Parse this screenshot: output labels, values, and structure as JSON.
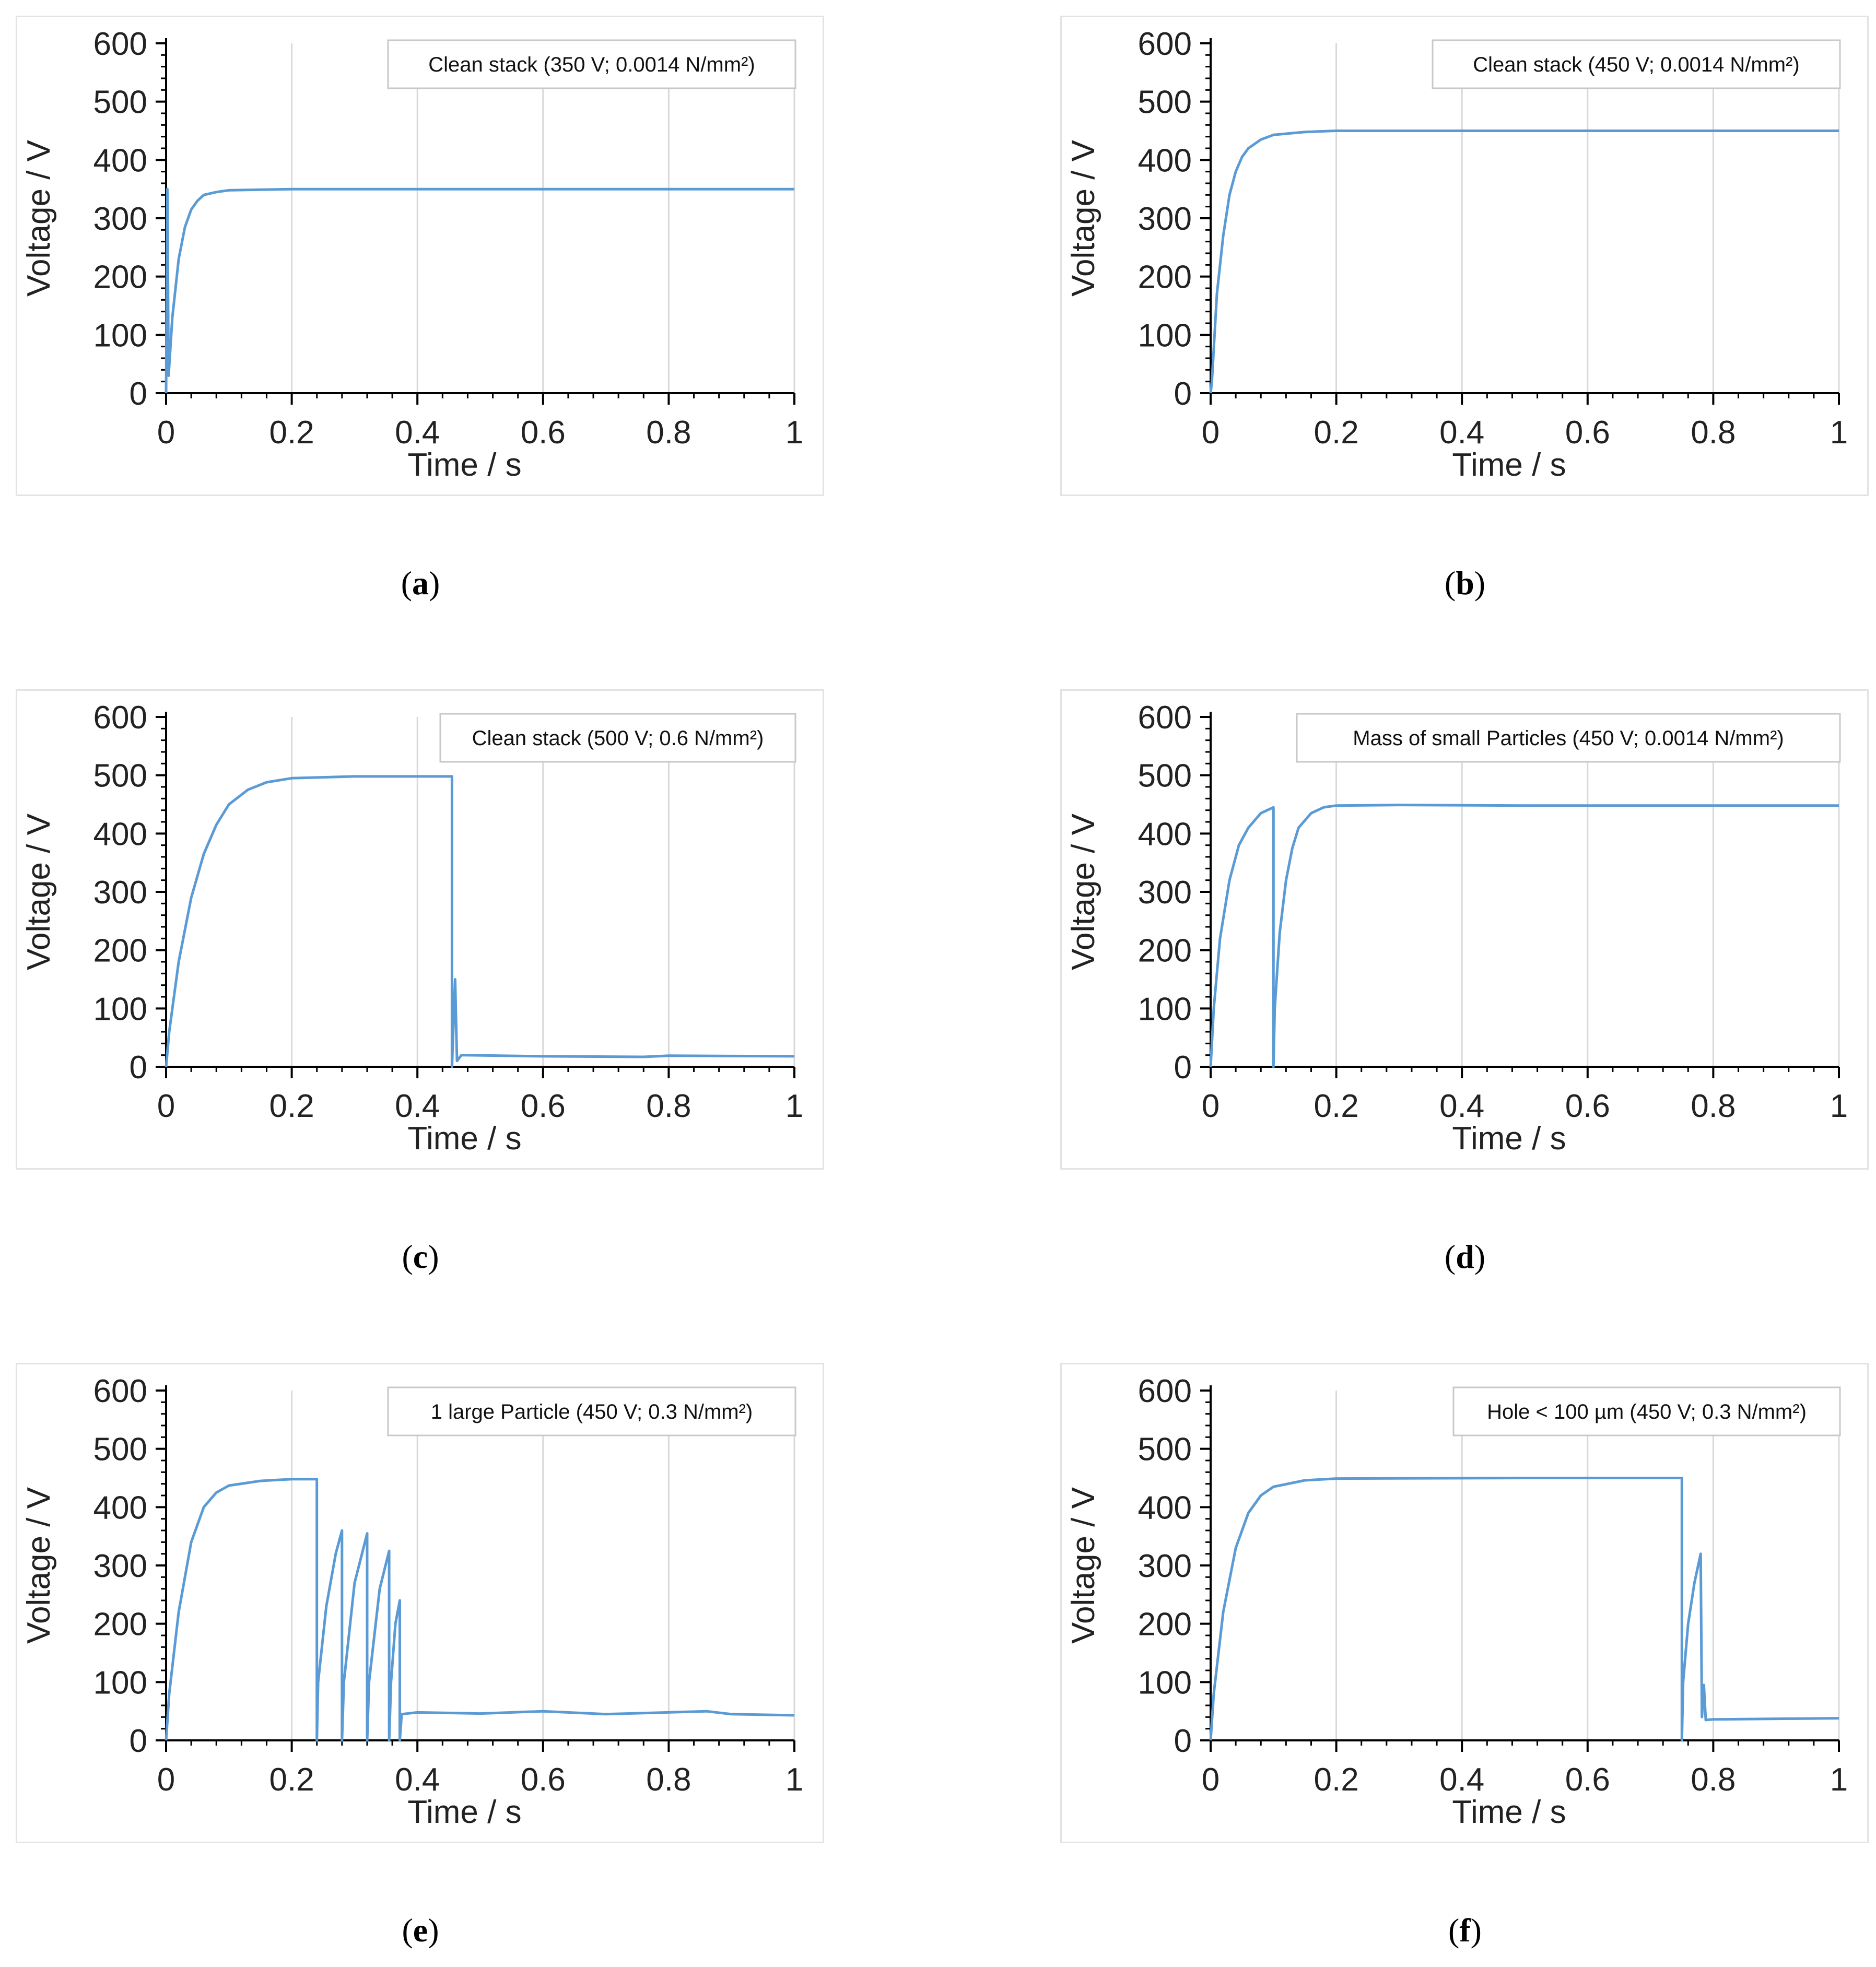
{
  "colors": {
    "series": "#5b9bd5",
    "grid": "#d9d9d9",
    "axis": "#000000",
    "frame": "#e3e3e3"
  },
  "chart_data": [
    {
      "id": "a",
      "type": "line",
      "caption": "a",
      "annotation": "Clean stack (350 V; 0.0014 N/mm²)",
      "xlabel": "Time / s",
      "ylabel": "Voltage / V",
      "xlim": [
        0,
        1
      ],
      "ylim": [
        0,
        600
      ],
      "xticks": [
        "0",
        "0.2",
        "0.4",
        "0.6",
        "0.8",
        "1"
      ],
      "yticks": [
        "0",
        "100",
        "200",
        "300",
        "400",
        "500",
        "600"
      ],
      "series": [
        {
          "name": "Voltage",
          "points": [
            [
              0,
              0
            ],
            [
              0.002,
              350
            ],
            [
              0.004,
              30
            ],
            [
              0.01,
              130
            ],
            [
              0.02,
              230
            ],
            [
              0.03,
              285
            ],
            [
              0.04,
              315
            ],
            [
              0.05,
              330
            ],
            [
              0.06,
              340
            ],
            [
              0.08,
              345
            ],
            [
              0.1,
              348
            ],
            [
              0.15,
              349
            ],
            [
              0.2,
              350
            ],
            [
              0.4,
              350
            ],
            [
              0.6,
              350
            ],
            [
              0.8,
              350
            ],
            [
              1.0,
              350
            ]
          ]
        }
      ]
    },
    {
      "id": "b",
      "type": "line",
      "caption": "b",
      "annotation": "Clean stack (450 V; 0.0014 N/mm²)",
      "xlabel": "Time / s",
      "ylabel": "Voltage / V",
      "xlim": [
        0,
        1
      ],
      "ylim": [
        0,
        600
      ],
      "xticks": [
        "0",
        "0.2",
        "0.4",
        "0.6",
        "0.8",
        "1"
      ],
      "yticks": [
        "0",
        "100",
        "200",
        "300",
        "400",
        "500",
        "600"
      ],
      "series": [
        {
          "name": "Voltage",
          "points": [
            [
              0,
              0
            ],
            [
              0.002,
              20
            ],
            [
              0.01,
              170
            ],
            [
              0.02,
              270
            ],
            [
              0.03,
              340
            ],
            [
              0.04,
              380
            ],
            [
              0.05,
              405
            ],
            [
              0.06,
              420
            ],
            [
              0.08,
              435
            ],
            [
              0.1,
              443
            ],
            [
              0.15,
              448
            ],
            [
              0.2,
              450
            ],
            [
              0.4,
              450
            ],
            [
              0.6,
              450
            ],
            [
              0.8,
              450
            ],
            [
              1.0,
              450
            ]
          ]
        }
      ]
    },
    {
      "id": "c",
      "type": "line",
      "caption": "c",
      "annotation": "Clean stack (500 V; 0.6 N/mm²)",
      "xlabel": "Time / s",
      "ylabel": "Voltage / V",
      "xlim": [
        0,
        1
      ],
      "ylim": [
        0,
        600
      ],
      "xticks": [
        "0",
        "0.2",
        "0.4",
        "0.6",
        "0.8",
        "1"
      ],
      "yticks": [
        "0",
        "100",
        "200",
        "300",
        "400",
        "500",
        "600"
      ],
      "series": [
        {
          "name": "Voltage",
          "points": [
            [
              0,
              0
            ],
            [
              0.005,
              60
            ],
            [
              0.02,
              180
            ],
            [
              0.04,
              290
            ],
            [
              0.06,
              365
            ],
            [
              0.08,
              415
            ],
            [
              0.1,
              450
            ],
            [
              0.13,
              475
            ],
            [
              0.16,
              488
            ],
            [
              0.2,
              495
            ],
            [
              0.3,
              498
            ],
            [
              0.455,
              498
            ],
            [
              0.455,
              0
            ],
            [
              0.46,
              150
            ],
            [
              0.463,
              10
            ],
            [
              0.47,
              20
            ],
            [
              0.6,
              18
            ],
            [
              0.76,
              17
            ],
            [
              0.8,
              19
            ],
            [
              1.0,
              18
            ]
          ]
        }
      ]
    },
    {
      "id": "d",
      "type": "line",
      "caption": "d",
      "annotation": "Mass of small Particles (450 V; 0.0014 N/mm²)",
      "xlabel": "Time / s",
      "ylabel": "Voltage / V",
      "xlim": [
        0,
        1
      ],
      "ylim": [
        0,
        600
      ],
      "xticks": [
        "0",
        "0.2",
        "0.4",
        "0.6",
        "0.8",
        "1"
      ],
      "yticks": [
        "0",
        "100",
        "200",
        "300",
        "400",
        "500",
        "600"
      ],
      "series": [
        {
          "name": "Voltage",
          "points": [
            [
              0,
              0
            ],
            [
              0.005,
              100
            ],
            [
              0.015,
              220
            ],
            [
              0.03,
              320
            ],
            [
              0.045,
              380
            ],
            [
              0.06,
              410
            ],
            [
              0.08,
              435
            ],
            [
              0.1,
              445
            ],
            [
              0.1,
              0
            ],
            [
              0.102,
              100
            ],
            [
              0.11,
              230
            ],
            [
              0.12,
              320
            ],
            [
              0.13,
              375
            ],
            [
              0.14,
              410
            ],
            [
              0.16,
              435
            ],
            [
              0.18,
              445
            ],
            [
              0.2,
              448
            ],
            [
              0.3,
              449
            ],
            [
              0.5,
              448
            ],
            [
              0.8,
              448
            ],
            [
              1.0,
              448
            ]
          ]
        }
      ]
    },
    {
      "id": "e",
      "type": "line",
      "caption": "e",
      "annotation": "1 large Particle (450 V; 0.3 N/mm²)",
      "xlabel": "Time / s",
      "ylabel": "Voltage / V",
      "xlim": [
        0,
        1
      ],
      "ylim": [
        0,
        600
      ],
      "xticks": [
        "0",
        "0.2",
        "0.4",
        "0.6",
        "0.8",
        "1"
      ],
      "yticks": [
        "0",
        "100",
        "200",
        "300",
        "400",
        "500",
        "600"
      ],
      "series": [
        {
          "name": "Voltage",
          "points": [
            [
              0,
              0
            ],
            [
              0.005,
              80
            ],
            [
              0.02,
              220
            ],
            [
              0.04,
              340
            ],
            [
              0.06,
              400
            ],
            [
              0.08,
              425
            ],
            [
              0.1,
              437
            ],
            [
              0.15,
              445
            ],
            [
              0.2,
              448
            ],
            [
              0.24,
              448
            ],
            [
              0.24,
              0
            ],
            [
              0.242,
              100
            ],
            [
              0.255,
              230
            ],
            [
              0.27,
              320
            ],
            [
              0.28,
              360
            ],
            [
              0.28,
              0
            ],
            [
              0.283,
              100
            ],
            [
              0.3,
              270
            ],
            [
              0.32,
              355
            ],
            [
              0.32,
              0
            ],
            [
              0.323,
              100
            ],
            [
              0.34,
              260
            ],
            [
              0.355,
              325
            ],
            [
              0.355,
              0
            ],
            [
              0.358,
              100
            ],
            [
              0.365,
              200
            ],
            [
              0.372,
              240
            ],
            [
              0.372,
              0
            ],
            [
              0.375,
              45
            ],
            [
              0.4,
              48
            ],
            [
              0.5,
              46
            ],
            [
              0.6,
              50
            ],
            [
              0.7,
              45
            ],
            [
              0.86,
              50
            ],
            [
              0.9,
              45
            ],
            [
              1.0,
              43
            ]
          ]
        }
      ]
    },
    {
      "id": "f",
      "type": "line",
      "caption": "f",
      "annotation": "Hole < 100 µm (450 V; 0.3 N/mm²)",
      "xlabel": "Time / s",
      "ylabel": "Voltage / V",
      "xlim": [
        0,
        1
      ],
      "ylim": [
        0,
        600
      ],
      "xticks": [
        "0",
        "0.2",
        "0.4",
        "0.6",
        "0.8",
        "1"
      ],
      "yticks": [
        "0",
        "100",
        "200",
        "300",
        "400",
        "500",
        "600"
      ],
      "series": [
        {
          "name": "Voltage",
          "points": [
            [
              0,
              0
            ],
            [
              0.005,
              80
            ],
            [
              0.02,
              220
            ],
            [
              0.04,
              330
            ],
            [
              0.06,
              390
            ],
            [
              0.08,
              420
            ],
            [
              0.1,
              435
            ],
            [
              0.15,
              446
            ],
            [
              0.2,
              449
            ],
            [
              0.5,
              450
            ],
            [
              0.75,
              450
            ],
            [
              0.75,
              0
            ],
            [
              0.752,
              100
            ],
            [
              0.76,
              200
            ],
            [
              0.77,
              270
            ],
            [
              0.78,
              320
            ],
            [
              0.782,
              40
            ],
            [
              0.785,
              95
            ],
            [
              0.788,
              35
            ],
            [
              0.8,
              36
            ],
            [
              1.0,
              38
            ]
          ]
        }
      ]
    }
  ]
}
